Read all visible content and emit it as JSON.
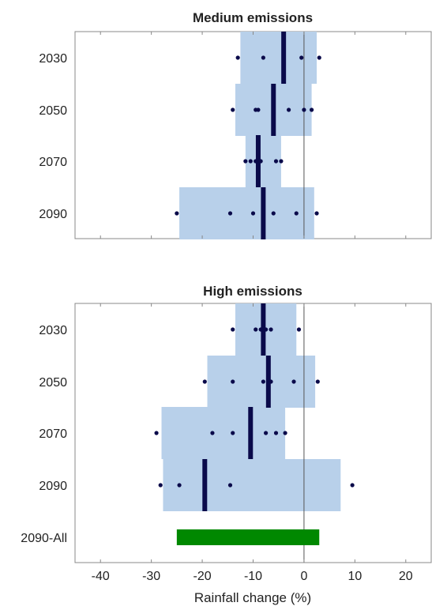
{
  "chart_data": [
    {
      "type": "box-range",
      "title": "Medium emissions",
      "xlim": [
        -45,
        25
      ],
      "zero_line": 0,
      "colors": {
        "range": "#b8d0ea",
        "median": "#0a0a4a",
        "point": "#0a0a4a",
        "zero_line": "#555555"
      },
      "rows": [
        {
          "label": "2030",
          "range": [
            -12.5,
            2.5
          ],
          "median": -4,
          "points": [
            -13,
            -8,
            -0.5,
            3
          ]
        },
        {
          "label": "2050",
          "range": [
            -13.5,
            1.5
          ],
          "median": -6,
          "points": [
            -14,
            -9.5,
            -9,
            -3,
            0,
            1.5
          ]
        },
        {
          "label": "2070",
          "range": [
            -11.5,
            -4.5
          ],
          "median": -9,
          "points": [
            -11.5,
            -10.5,
            -9.5,
            -8.5,
            -5.5,
            -4.5
          ]
        },
        {
          "label": "2090",
          "range": [
            -24.5,
            2
          ],
          "median": -8,
          "points": [
            -25,
            -14.5,
            -10,
            -6,
            -1.5,
            2.5
          ]
        }
      ]
    },
    {
      "type": "box-range",
      "title": "High emissions",
      "xlim": [
        -45,
        25
      ],
      "zero_line": 0,
      "xlabel": "Rainfall change (%)",
      "xticks": [
        -40,
        -30,
        -20,
        -10,
        0,
        10,
        20
      ],
      "colors": {
        "range": "#b8d0ea",
        "median": "#0a0a4a",
        "point": "#0a0a4a",
        "zero_line": "#555555",
        "all_bar": "#008800"
      },
      "rows": [
        {
          "label": "2030",
          "range": [
            -13.5,
            -1.5
          ],
          "median": -8,
          "points": [
            -14,
            -9.5,
            -8.5,
            -7.5,
            -6.5,
            -1
          ]
        },
        {
          "label": "2050",
          "range": [
            -19,
            2.2
          ],
          "median": -7,
          "points": [
            -19.5,
            -14,
            -8,
            -6.5,
            -2,
            2.7
          ]
        },
        {
          "label": "2070",
          "range": [
            -28,
            -3.7
          ],
          "median": -10.5,
          "points": [
            -29,
            -18,
            -14,
            -7.5,
            -5.5,
            -3.7
          ]
        },
        {
          "label": "2090",
          "range": [
            -27.7,
            7.2
          ],
          "median": -19.5,
          "points": [
            -28.2,
            -24.5,
            -14.5,
            9.5
          ]
        }
      ],
      "summary_row": {
        "label": "2090-All",
        "range": [
          -25,
          3
        ]
      }
    }
  ]
}
